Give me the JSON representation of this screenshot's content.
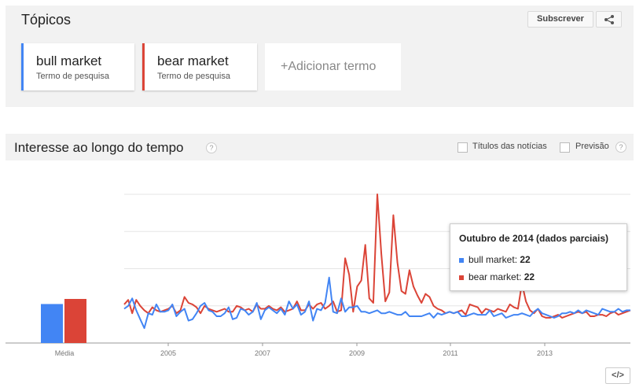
{
  "topics": {
    "title": "Tópicos",
    "subscribe_label": "Subscrever",
    "share_icon": "share-icon",
    "terms": [
      {
        "name": "bull market",
        "subtitle": "Termo de pesquisa",
        "color": "#4285f4"
      },
      {
        "name": "bear market",
        "subtitle": "Termo de pesquisa",
        "color": "#db4437"
      }
    ],
    "add_term": "+Adicionar termo"
  },
  "interest": {
    "title": "Interesse ao longo do tempo",
    "help_glyph": "?",
    "headlines_label": "Títulos das notícias",
    "forecast_label": "Previsão"
  },
  "tooltip": {
    "title": "Outubro de 2014 (dados parciais)",
    "rows": [
      {
        "label": "bull market: ",
        "value": "22",
        "color": "#4285f4"
      },
      {
        "label": "bear market: ",
        "value": "22",
        "color": "#db4437"
      }
    ]
  },
  "embed_label": "</>",
  "chart_data": {
    "type": "line",
    "x_tick_labels": [
      "2005",
      "2007",
      "2009",
      "2011",
      "2013"
    ],
    "ylim": [
      0,
      100
    ],
    "grid": true,
    "average": {
      "label": "Média",
      "values": [
        {
          "name": "bull market",
          "value": 23
        },
        {
          "name": "bear market",
          "value": 26
        }
      ]
    },
    "series": [
      {
        "name": "bull market",
        "color": "#4285f4",
        "values": [
          23,
          25,
          30,
          22,
          16,
          10,
          20,
          19,
          26,
          21,
          21,
          22,
          26,
          18,
          21,
          23,
          15,
          16,
          20,
          25,
          27,
          22,
          21,
          18,
          18,
          20,
          24,
          16,
          17,
          23,
          22,
          19,
          21,
          27,
          16,
          22,
          24,
          22,
          20,
          23,
          19,
          28,
          23,
          26,
          19,
          21,
          28,
          15,
          23,
          22,
          27,
          44,
          21,
          20,
          30,
          21,
          24,
          24,
          25,
          21,
          21,
          20,
          21,
          22,
          20,
          20,
          21,
          20,
          19,
          19,
          21,
          18,
          18,
          18,
          18,
          19,
          20,
          17,
          20,
          19,
          20,
          21,
          20,
          21,
          18,
          18,
          19,
          20,
          19,
          19,
          19,
          22,
          18,
          19,
          20,
          17,
          18,
          19,
          19,
          20,
          19,
          18,
          21,
          23,
          20,
          19,
          18,
          17,
          18,
          20,
          20,
          21,
          20,
          22,
          20,
          22,
          21,
          20,
          19,
          23,
          22,
          21,
          21,
          23,
          21,
          22,
          22
        ]
      },
      {
        "name": "bear market",
        "color": "#db4437",
        "values": [
          26,
          29,
          20,
          29,
          25,
          22,
          20,
          24,
          22,
          21,
          22,
          23,
          25,
          20,
          22,
          31,
          27,
          26,
          24,
          20,
          25,
          23,
          22,
          21,
          22,
          23,
          21,
          21,
          25,
          24,
          22,
          23,
          21,
          26,
          23,
          23,
          25,
          23,
          22,
          24,
          21,
          22,
          23,
          28,
          22,
          22,
          26,
          23,
          26,
          27,
          23,
          25,
          28,
          21,
          22,
          57,
          46,
          21,
          38,
          42,
          66,
          30,
          27,
          100,
          60,
          28,
          34,
          86,
          54,
          35,
          33,
          49,
          38,
          32,
          27,
          33,
          31,
          25,
          23,
          22,
          20,
          21,
          20,
          21,
          22,
          19,
          26,
          25,
          24,
          20,
          23,
          22,
          21,
          23,
          22,
          21,
          26,
          24,
          23,
          40,
          28,
          22,
          20,
          23,
          18,
          17,
          17,
          18,
          19,
          17,
          18,
          19,
          20,
          21,
          20,
          21,
          18,
          18,
          19,
          19,
          18,
          20,
          21,
          19,
          20,
          21,
          22
        ]
      }
    ]
  }
}
